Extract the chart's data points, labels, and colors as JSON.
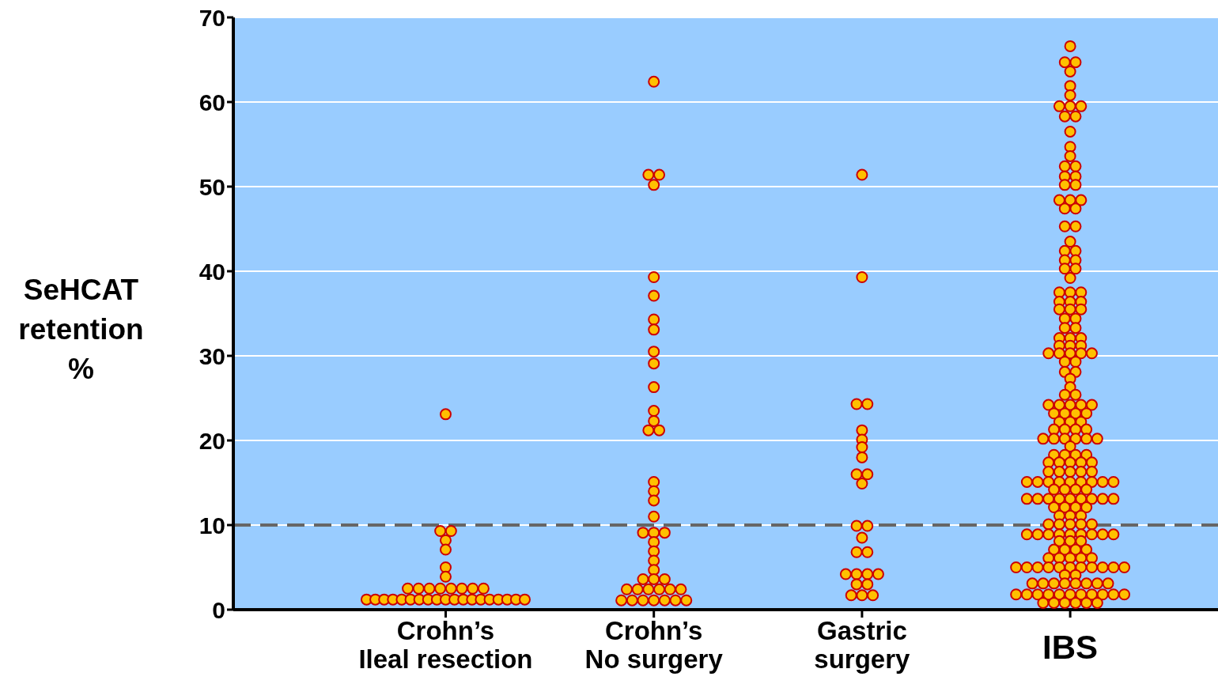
{
  "chart_data": {
    "type": "scatter",
    "ylabel": "SeHCAT retention %",
    "categories": [
      "Crohn’s Ileal resection",
      "Crohn’s No surgery",
      "Gastric surgery",
      "IBS"
    ],
    "ylim": [
      0,
      70
    ],
    "yticks": [
      0,
      10,
      20,
      30,
      40,
      50,
      60,
      70
    ],
    "grid": "y",
    "marker": "circle",
    "ref_lines": [
      {
        "axis": "y",
        "value": 10,
        "color": "#666666",
        "line_style": "dashed"
      }
    ],
    "series": [
      {
        "color": "#ffc000",
        "x": [
          "Crohn’s Ileal resection",
          "Crohn’s Ileal resection",
          "Crohn’s Ileal resection",
          "Crohn’s Ileal resection",
          "Crohn’s Ileal resection",
          "Crohn’s Ileal resection",
          "Crohn’s Ileal resection",
          "Crohn’s Ileal resection",
          "Crohn’s Ileal resection",
          "Crohn’s Ileal resection",
          "Crohn’s Ileal resection",
          "Crohn’s Ileal resection",
          "Crohn’s Ileal resection",
          "Crohn’s Ileal resection",
          "Crohn’s Ileal resection",
          "Crohn’s Ileal resection",
          "Crohn’s Ileal resection",
          "Crohn’s Ileal resection",
          "Crohn’s Ileal resection",
          "Crohn’s Ileal resection",
          "Crohn’s Ileal resection",
          "Crohn’s Ileal resection",
          "Crohn’s Ileal resection",
          "Crohn’s Ileal resection",
          "Crohn’s Ileal resection",
          "Crohn’s Ileal resection",
          "Crohn’s Ileal resection",
          "Crohn’s Ileal resection",
          "Crohn’s Ileal resection",
          "Crohn’s Ileal resection",
          "Crohn’s Ileal resection",
          "Crohn’s Ileal resection",
          "Crohn’s Ileal resection",
          "Crohn’s Ileal resection"
        ],
        "values": [
          23.1,
          9.3,
          9.3,
          8.2,
          7.1,
          5.0,
          3.9,
          2.5,
          2.5,
          2.5,
          2.5,
          2.5,
          2.5,
          2.5,
          2.5,
          1.2,
          1.2,
          1.2,
          1.2,
          1.2,
          1.2,
          1.2,
          1.2,
          1.2,
          1.2,
          1.2,
          1.2,
          1.2,
          1.2,
          1.2,
          1.2,
          1.2,
          1.2,
          1.2
        ]
      },
      {
        "color": "#ffc000",
        "x": [
          "Crohn’s No surgery",
          "Crohn’s No surgery",
          "Crohn’s No surgery",
          "Crohn’s No surgery",
          "Crohn’s No surgery",
          "Crohn’s No surgery",
          "Crohn’s No surgery",
          "Crohn’s No surgery",
          "Crohn’s No surgery",
          "Crohn’s No surgery",
          "Crohn’s No surgery",
          "Crohn’s No surgery",
          "Crohn’s No surgery",
          "Crohn’s No surgery",
          "Crohn’s No surgery",
          "Crohn’s No surgery",
          "Crohn’s No surgery",
          "Crohn’s No surgery",
          "Crohn’s No surgery",
          "Crohn’s No surgery",
          "Crohn’s No surgery",
          "Crohn’s No surgery",
          "Crohn’s No surgery",
          "Crohn’s No surgery",
          "Crohn’s No surgery",
          "Crohn’s No surgery",
          "Crohn’s No surgery",
          "Crohn’s No surgery",
          "Crohn’s No surgery",
          "Crohn’s No surgery",
          "Crohn’s No surgery",
          "Crohn’s No surgery",
          "Crohn’s No surgery",
          "Crohn’s No surgery",
          "Crohn’s No surgery",
          "Crohn’s No surgery",
          "Crohn’s No surgery",
          "Crohn’s No surgery",
          "Crohn’s No surgery",
          "Crohn’s No surgery",
          "Crohn’s No surgery",
          "Crohn’s No surgery"
        ],
        "values": [
          62.4,
          51.4,
          51.4,
          50.2,
          39.3,
          37.1,
          34.3,
          33.1,
          30.5,
          29.1,
          26.3,
          23.5,
          22.3,
          21.2,
          21.2,
          15.1,
          14.0,
          12.9,
          11.0,
          9.1,
          9.1,
          9.1,
          8.0,
          6.9,
          5.8,
          4.7,
          3.6,
          3.6,
          3.6,
          2.4,
          2.4,
          2.4,
          2.4,
          2.4,
          2.4,
          1.1,
          1.1,
          1.1,
          1.1,
          1.1,
          1.1,
          1.1
        ]
      },
      {
        "color": "#ffc000",
        "x": [
          "Gastric surgery",
          "Gastric surgery",
          "Gastric surgery",
          "Gastric surgery",
          "Gastric surgery",
          "Gastric surgery",
          "Gastric surgery",
          "Gastric surgery",
          "Gastric surgery",
          "Gastric surgery",
          "Gastric surgery",
          "Gastric surgery",
          "Gastric surgery",
          "Gastric surgery",
          "Gastric surgery",
          "Gastric surgery",
          "Gastric surgery",
          "Gastric surgery",
          "Gastric surgery",
          "Gastric surgery",
          "Gastric surgery",
          "Gastric surgery",
          "Gastric surgery",
          "Gastric surgery",
          "Gastric surgery"
        ],
        "values": [
          51.4,
          39.3,
          24.3,
          24.3,
          21.2,
          20.1,
          19.2,
          18.0,
          16.0,
          16.0,
          14.9,
          9.9,
          9.9,
          8.5,
          6.8,
          6.8,
          4.2,
          4.2,
          4.2,
          4.2,
          3.0,
          3.0,
          1.7,
          1.7,
          1.7
        ]
      },
      {
        "color": "#ffc000",
        "x": [
          "IBS",
          "IBS",
          "IBS",
          "IBS",
          "IBS",
          "IBS",
          "IBS",
          "IBS",
          "IBS",
          "IBS",
          "IBS",
          "IBS",
          "IBS",
          "IBS",
          "IBS",
          "IBS",
          "IBS",
          "IBS",
          "IBS",
          "IBS",
          "IBS",
          "IBS",
          "IBS",
          "IBS",
          "IBS",
          "IBS",
          "IBS",
          "IBS",
          "IBS",
          "IBS",
          "IBS",
          "IBS",
          "IBS",
          "IBS",
          "IBS",
          "IBS",
          "IBS",
          "IBS",
          "IBS",
          "IBS",
          "IBS",
          "IBS",
          "IBS",
          "IBS",
          "IBS",
          "IBS",
          "IBS",
          "IBS",
          "IBS",
          "IBS",
          "IBS",
          "IBS",
          "IBS",
          "IBS",
          "IBS",
          "IBS",
          "IBS",
          "IBS",
          "IBS",
          "IBS",
          "IBS",
          "IBS",
          "IBS",
          "IBS",
          "IBS",
          "IBS",
          "IBS",
          "IBS",
          "IBS",
          "IBS",
          "IBS",
          "IBS",
          "IBS",
          "IBS",
          "IBS",
          "IBS",
          "IBS",
          "IBS",
          "IBS",
          "IBS",
          "IBS",
          "IBS",
          "IBS",
          "IBS",
          "IBS",
          "IBS",
          "IBS",
          "IBS",
          "IBS",
          "IBS",
          "IBS",
          "IBS",
          "IBS",
          "IBS",
          "IBS",
          "IBS",
          "IBS",
          "IBS",
          "IBS",
          "IBS",
          "IBS",
          "IBS",
          "IBS",
          "IBS",
          "IBS",
          "IBS",
          "IBS",
          "IBS",
          "IBS",
          "IBS",
          "IBS",
          "IBS",
          "IBS",
          "IBS",
          "IBS",
          "IBS",
          "IBS",
          "IBS",
          "IBS",
          "IBS",
          "IBS",
          "IBS",
          "IBS",
          "IBS",
          "IBS",
          "IBS",
          "IBS",
          "IBS",
          "IBS",
          "IBS",
          "IBS",
          "IBS",
          "IBS",
          "IBS",
          "IBS",
          "IBS",
          "IBS",
          "IBS",
          "IBS",
          "IBS",
          "IBS",
          "IBS",
          "IBS",
          "IBS",
          "IBS",
          "IBS",
          "IBS",
          "IBS",
          "IBS",
          "IBS",
          "IBS",
          "IBS",
          "IBS",
          "IBS",
          "IBS",
          "IBS",
          "IBS",
          "IBS",
          "IBS",
          "IBS",
          "IBS",
          "IBS",
          "IBS",
          "IBS",
          "IBS",
          "IBS",
          "IBS",
          "IBS",
          "IBS",
          "IBS",
          "IBS",
          "IBS",
          "IBS",
          "IBS",
          "IBS",
          "IBS",
          "IBS",
          "IBS",
          "IBS",
          "IBS",
          "IBS",
          "IBS",
          "IBS",
          "IBS",
          "IBS",
          "IBS",
          "IBS",
          "IBS",
          "IBS",
          "IBS",
          "IBS",
          "IBS",
          "IBS",
          "IBS",
          "IBS",
          "IBS",
          "IBS"
        ],
        "values": [
          66.6,
          64.7,
          64.7,
          63.6,
          61.9,
          60.8,
          59.5,
          59.5,
          59.5,
          58.3,
          58.3,
          56.5,
          54.7,
          53.6,
          52.4,
          52.4,
          51.2,
          51.2,
          50.2,
          50.2,
          48.4,
          48.4,
          48.4,
          47.4,
          47.4,
          45.3,
          45.3,
          43.5,
          42.4,
          42.4,
          41.3,
          41.3,
          40.3,
          40.3,
          39.2,
          37.5,
          37.5,
          37.5,
          36.4,
          36.4,
          36.4,
          35.5,
          35.5,
          35.5,
          34.4,
          34.4,
          33.3,
          33.3,
          32.1,
          32.1,
          32.1,
          31.2,
          31.2,
          31.2,
          30.3,
          30.3,
          30.3,
          30.3,
          30.3,
          29.3,
          29.3,
          28.1,
          28.1,
          27.3,
          26.3,
          25.4,
          25.4,
          24.2,
          24.2,
          24.2,
          24.2,
          24.2,
          23.2,
          23.2,
          23.2,
          23.2,
          22.2,
          22.2,
          22.2,
          21.3,
          21.3,
          21.3,
          21.3,
          20.2,
          20.2,
          20.2,
          20.2,
          20.2,
          20.2,
          19.3,
          18.3,
          18.3,
          18.3,
          18.3,
          17.4,
          17.4,
          17.4,
          17.4,
          17.4,
          16.3,
          16.3,
          16.3,
          16.3,
          16.3,
          15.1,
          15.1,
          15.1,
          15.1,
          15.1,
          15.1,
          15.1,
          15.1,
          15.1,
          14.2,
          14.2,
          14.2,
          14.2,
          13.1,
          13.1,
          13.1,
          13.1,
          13.1,
          13.1,
          13.1,
          13.1,
          13.1,
          12.1,
          12.1,
          12.1,
          12.1,
          11.1,
          11.1,
          11.1,
          10.1,
          10.1,
          10.1,
          10.1,
          10.1,
          8.9,
          8.9,
          8.9,
          8.9,
          8.9,
          8.9,
          8.9,
          8.9,
          8.9,
          8.1,
          8.1,
          8.1,
          7.1,
          7.1,
          7.1,
          7.1,
          6.1,
          6.1,
          6.1,
          6.1,
          6.1,
          5.0,
          5.0,
          5.0,
          5.0,
          5.0,
          5.0,
          5.0,
          5.0,
          5.0,
          5.0,
          5.0,
          4.1,
          4.1,
          3.1,
          3.1,
          3.1,
          3.1,
          3.1,
          3.1,
          3.1,
          3.1,
          1.8,
          1.8,
          1.8,
          1.8,
          1.8,
          1.8,
          1.8,
          1.8,
          1.8,
          1.8,
          1.8,
          0.8,
          0.8,
          0.8,
          0.8,
          0.8,
          0.8
        ]
      }
    ]
  }
}
